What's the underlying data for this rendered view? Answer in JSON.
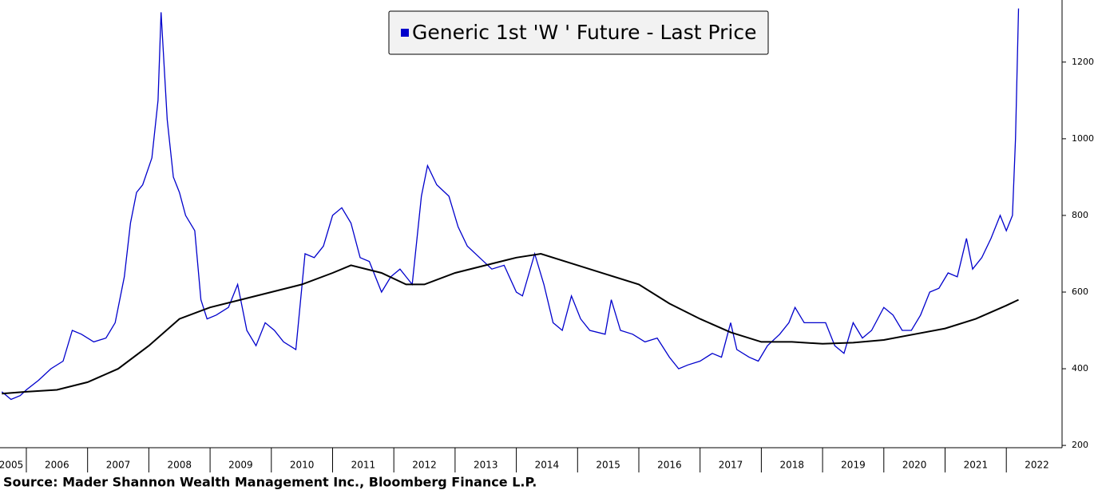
{
  "chart_data": {
    "type": "line",
    "series": [
      {
        "name": "Generic 1st 'W ' Future - Last Price",
        "color": "#0000cc",
        "x": [
          2005.6,
          2005.75,
          2005.9,
          2006.0,
          2006.2,
          2006.4,
          2006.6,
          2006.75,
          2006.9,
          2007.1,
          2007.3,
          2007.45,
          2007.6,
          2007.7,
          2007.8,
          2007.9,
          2008.05,
          2008.15,
          2008.2,
          2008.3,
          2008.4,
          2008.5,
          2008.6,
          2008.75,
          2008.85,
          2008.95,
          2009.1,
          2009.3,
          2009.45,
          2009.6,
          2009.75,
          2009.9,
          2010.05,
          2010.2,
          2010.4,
          2010.55,
          2010.7,
          2010.85,
          2011.0,
          2011.15,
          2011.3,
          2011.45,
          2011.6,
          2011.8,
          2011.95,
          2012.1,
          2012.3,
          2012.45,
          2012.55,
          2012.7,
          2012.9,
          2013.05,
          2013.2,
          2013.4,
          2013.6,
          2013.8,
          2014.0,
          2014.1,
          2014.3,
          2014.45,
          2014.6,
          2014.75,
          2014.9,
          2015.05,
          2015.2,
          2015.45,
          2015.55,
          2015.7,
          2015.9,
          2016.1,
          2016.3,
          2016.5,
          2016.65,
          2016.8,
          2017.0,
          2017.2,
          2017.35,
          2017.5,
          2017.6,
          2017.8,
          2017.95,
          2018.1,
          2018.3,
          2018.45,
          2018.55,
          2018.7,
          2018.9,
          2019.05,
          2019.2,
          2019.35,
          2019.5,
          2019.65,
          2019.8,
          2020.0,
          2020.15,
          2020.3,
          2020.45,
          2020.6,
          2020.75,
          2020.9,
          2021.05,
          2021.2,
          2021.35,
          2021.45,
          2021.6,
          2021.75,
          2021.9,
          2022.0,
          2022.1,
          2022.15,
          2022.2
        ],
        "values": [
          340,
          320,
          330,
          345,
          370,
          400,
          420,
          500,
          490,
          470,
          480,
          520,
          640,
          780,
          860,
          880,
          950,
          1100,
          1330,
          1050,
          900,
          860,
          800,
          760,
          580,
          530,
          540,
          560,
          620,
          500,
          460,
          520,
          500,
          470,
          450,
          700,
          690,
          720,
          800,
          820,
          780,
          690,
          680,
          600,
          640,
          660,
          620,
          850,
          930,
          880,
          850,
          770,
          720,
          690,
          660,
          670,
          600,
          590,
          700,
          620,
          520,
          500,
          590,
          530,
          500,
          490,
          580,
          500,
          490,
          470,
          480,
          430,
          400,
          410,
          420,
          440,
          430,
          520,
          450,
          430,
          420,
          460,
          490,
          520,
          560,
          520,
          520,
          520,
          460,
          440,
          520,
          480,
          500,
          560,
          540,
          500,
          500,
          540,
          600,
          610,
          650,
          640,
          740,
          660,
          690,
          740,
          800,
          760,
          800,
          1000,
          1340
        ]
      },
      {
        "color": "#000000",
        "x": [
          2005.6,
          2006.0,
          2006.5,
          2007.0,
          2007.5,
          2008.0,
          2008.5,
          2009.0,
          2009.5,
          2010.0,
          2010.5,
          2011.0,
          2011.3,
          2011.8,
          2012.2,
          2012.5,
          2013.0,
          2013.5,
          2014.0,
          2014.4,
          2015.0,
          2015.5,
          2016.0,
          2016.5,
          2017.0,
          2017.5,
          2018.0,
          2018.5,
          2019.0,
          2019.5,
          2020.0,
          2020.5,
          2021.0,
          2021.5,
          2022.0,
          2022.2
        ],
        "values": [
          335,
          340,
          345,
          365,
          400,
          460,
          530,
          560,
          580,
          600,
          620,
          650,
          670,
          650,
          620,
          620,
          650,
          670,
          690,
          700,
          670,
          645,
          620,
          570,
          530,
          495,
          470,
          470,
          465,
          468,
          475,
          490,
          505,
          530,
          565,
          580
        ]
      }
    ],
    "xlim": [
      2005.57,
      2022.91
    ],
    "xticks": [
      2005,
      2006,
      2007,
      2008,
      2009,
      2010,
      2011,
      2012,
      2013,
      2014,
      2015,
      2016,
      2017,
      2018,
      2019,
      2020,
      2021,
      2022
    ],
    "ylim": [
      194,
      1362
    ],
    "yticks": [
      200,
      400,
      600,
      800,
      1000,
      1200
    ],
    "source": "Source: Mader Shannon Wealth Management Inc., Bloomberg Finance L.P."
  }
}
